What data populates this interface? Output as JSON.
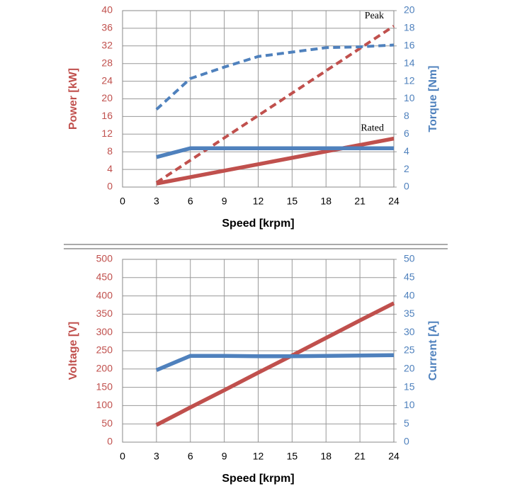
{
  "chart_data": [
    {
      "type": "line",
      "xlabel": "Speed [krpm]",
      "ylabel": "Power [kW]",
      "y2label": "Torque [Nm]",
      "xlim": [
        0,
        24
      ],
      "xticks": [
        0,
        3,
        6,
        9,
        12,
        15,
        18,
        21,
        24
      ],
      "ylim": [
        0,
        40
      ],
      "yticks": [
        0,
        4,
        8,
        12,
        16,
        20,
        24,
        28,
        32,
        36,
        40
      ],
      "y2lim": [
        0,
        20
      ],
      "y2ticks": [
        0,
        2,
        4,
        6,
        8,
        10,
        12,
        14,
        16,
        18,
        20
      ],
      "grid": true,
      "series": [
        {
          "label": "Peak",
          "color": "#c0504d",
          "dash": true,
          "x": [
            3,
            24
          ],
          "values": [
            1,
            36.5
          ]
        },
        {
          "label": "Rated",
          "color": "#c0504d",
          "dash": false,
          "x": [
            3,
            24
          ],
          "values": [
            0.8,
            11
          ]
        },
        {
          "color": "#4f81bd",
          "dash": true,
          "axis": "y2",
          "x": [
            3,
            6,
            9,
            12,
            15,
            18,
            21,
            24
          ],
          "values": [
            8.8,
            12.3,
            13.6,
            14.8,
            15.3,
            15.8,
            15.9,
            16.1
          ]
        },
        {
          "color": "#4f81bd",
          "dash": false,
          "axis": "y2",
          "x": [
            3,
            6,
            9,
            12,
            15,
            18,
            21,
            24
          ],
          "values": [
            3.4,
            4.4,
            4.4,
            4.4,
            4.4,
            4.4,
            4.4,
            4.4
          ]
        }
      ]
    },
    {
      "type": "line",
      "xlabel": "Speed [krpm]",
      "ylabel": "Voltage [V]",
      "y2label": "Current [A]",
      "xlim": [
        0,
        24
      ],
      "xticks": [
        0,
        3,
        6,
        9,
        12,
        15,
        18,
        21,
        24
      ],
      "ylim": [
        0,
        500
      ],
      "yticks": [
        0,
        50,
        100,
        150,
        200,
        250,
        300,
        350,
        400,
        450,
        500
      ],
      "y2lim": [
        0,
        50
      ],
      "y2ticks": [
        0,
        5,
        10,
        15,
        20,
        25,
        30,
        35,
        40,
        45,
        50
      ],
      "grid": true,
      "series": [
        {
          "color": "#c0504d",
          "dash": false,
          "x": [
            3,
            6,
            9,
            12,
            15,
            18,
            21,
            24
          ],
          "values": [
            47,
            95,
            142,
            190,
            237,
            285,
            333,
            380
          ]
        },
        {
          "color": "#4f81bd",
          "dash": false,
          "axis": "y2",
          "x": [
            3,
            6,
            9,
            12,
            15,
            18,
            21,
            24
          ],
          "values": [
            19.7,
            23.6,
            23.6,
            23.5,
            23.5,
            23.6,
            23.7,
            23.8
          ]
        }
      ]
    }
  ]
}
